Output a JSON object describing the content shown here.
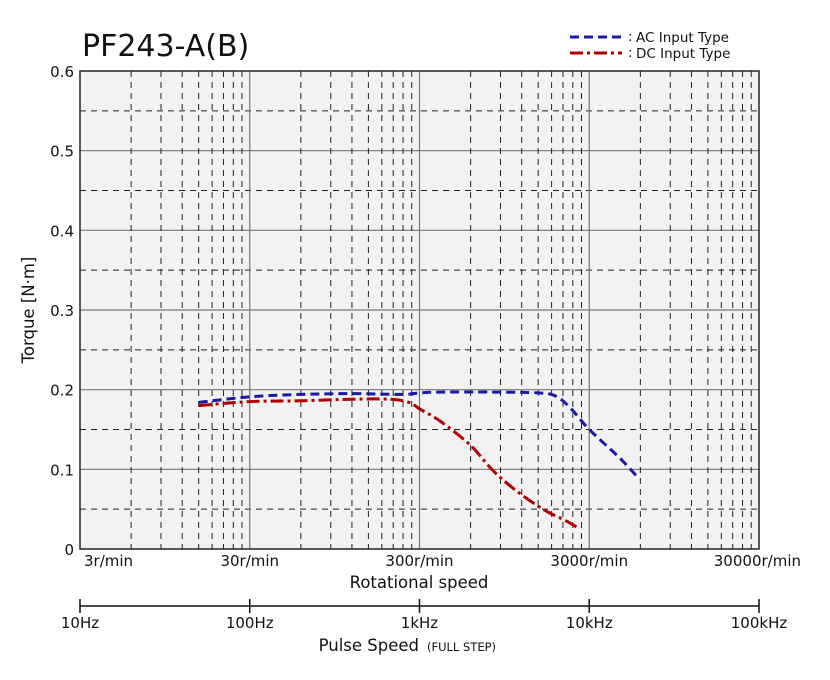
{
  "chart_data": {
    "type": "line",
    "title": "PF243-A(B)",
    "xscale": "log",
    "xlabel": "Rotational speed",
    "ylabel": "Torque [N·m]",
    "xlim": [
      3,
      30000
    ],
    "ylim": [
      0,
      0.6
    ],
    "grid": true,
    "legend_position": "top-right",
    "yticks": [
      {
        "value": 0,
        "label": "0"
      },
      {
        "value": 0.1,
        "label": "0.1"
      },
      {
        "value": 0.2,
        "label": "0.2"
      },
      {
        "value": 0.3,
        "label": "0.3"
      },
      {
        "value": 0.4,
        "label": "0.4"
      },
      {
        "value": 0.5,
        "label": "0.5"
      },
      {
        "value": 0.6,
        "label": "0.6"
      }
    ],
    "xticks": [
      {
        "value": 3,
        "label": "3r/min"
      },
      {
        "value": 30,
        "label": "30r/min"
      },
      {
        "value": 300,
        "label": "300r/min"
      },
      {
        "value": 3000,
        "label": "3000r/min"
      },
      {
        "value": 30000,
        "label": "30000r/min"
      }
    ],
    "secondary_axis": {
      "label": "Pulse Speed",
      "label_note": "(FULL STEP)",
      "ticks": [
        {
          "value": 3,
          "label": "10Hz"
        },
        {
          "value": 30,
          "label": "100Hz"
        },
        {
          "value": 300,
          "label": "1kHz"
        },
        {
          "value": 3000,
          "label": "10kHz"
        },
        {
          "value": 30000,
          "label": "100kHz"
        }
      ]
    },
    "series": [
      {
        "name": "AC Input Type",
        "color": "#1a1aa6",
        "dash": "dashed",
        "points": [
          [
            15,
            0.184
          ],
          [
            30,
            0.191
          ],
          [
            60,
            0.194
          ],
          [
            120,
            0.195
          ],
          [
            240,
            0.194
          ],
          [
            300,
            0.196
          ],
          [
            400,
            0.197
          ],
          [
            800,
            0.197
          ],
          [
            1500,
            0.196
          ],
          [
            1900,
            0.192
          ],
          [
            2300,
            0.178
          ],
          [
            3000,
            0.15
          ],
          [
            4500,
            0.115
          ],
          [
            5900,
            0.088
          ]
        ]
      },
      {
        "name": "DC Input Type",
        "color": "#b00000",
        "dash": "dash-dot",
        "points": [
          [
            15,
            0.18
          ],
          [
            30,
            0.185
          ],
          [
            60,
            0.186
          ],
          [
            120,
            0.188
          ],
          [
            200,
            0.188
          ],
          [
            260,
            0.184
          ],
          [
            300,
            0.176
          ],
          [
            400,
            0.16
          ],
          [
            600,
            0.13
          ],
          [
            800,
            0.1
          ],
          [
            1100,
            0.074
          ],
          [
            1600,
            0.05
          ],
          [
            2200,
            0.035
          ],
          [
            2600,
            0.026
          ]
        ]
      }
    ]
  }
}
